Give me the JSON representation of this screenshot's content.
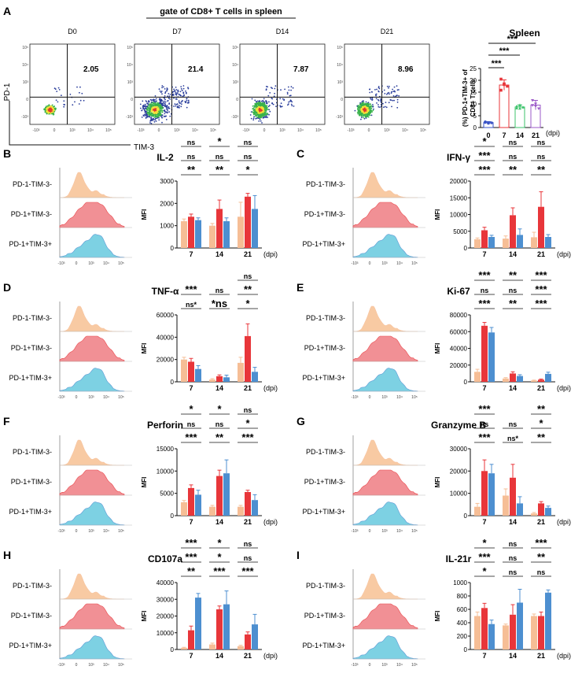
{
  "colors": {
    "neg": "#f6be96",
    "pd1pos": "#e8363a",
    "dbl": "#4d8fd0",
    "hist_neg_fill": "#f8c59a",
    "hist_pd1_fill": "#f0848a",
    "hist_dbl_fill": "#6fcde0",
    "spleen_d0": "#3b55c7",
    "spleen_d7": "#e8363a",
    "spleen_d14": "#3cc36b",
    "spleen_d21": "#9b59c8",
    "flow_low": "#2b3f9c",
    "flow_mid": "#39b24a",
    "flow_high": "#f4e03a",
    "flow_peak": "#e23a2e"
  },
  "panel_a": {
    "letter": "A",
    "header": "gate of CD8+ T cells in spleen",
    "y_axis_label": "PD-1",
    "x_axis_label": "TIM-3",
    "plots": [
      {
        "day": "D0",
        "percent": "2.05"
      },
      {
        "day": "D7",
        "percent": "21.4"
      },
      {
        "day": "D14",
        "percent": "7.87"
      },
      {
        "day": "D21",
        "percent": "8.96"
      }
    ],
    "x_ticks": [
      "-10³",
      "0",
      "10³",
      "10⁴",
      "10⁵"
    ],
    "y_ticks": [
      "10⁵",
      "10⁴",
      "10³",
      "0",
      "-10³"
    ]
  },
  "hist_labels": [
    "PD-1-TIM-3-",
    "PD-1+TIM-3-",
    "PD-1+TIM-3+"
  ],
  "hist_ticks": [
    "-10³",
    "0",
    "10³",
    "10⁴",
    "10⁵"
  ],
  "chart_data": [
    {
      "type": "scatter",
      "title": "Spleen",
      "ylabel": "(%) PD-1+TIM-3+ of CD8+ T cells",
      "xlabel": "(dpi)",
      "categories": [
        "0",
        "7",
        "14",
        "21"
      ],
      "means": [
        2.1,
        18.0,
        8.7,
        9.5
      ],
      "errors": [
        0.4,
        2.2,
        0.9,
        2.0
      ],
      "points": [
        [
          2.2,
          1.8,
          2.0,
          2.4,
          2.1
        ],
        [
          20.5,
          18.5,
          17.5,
          15.8,
          18.2
        ],
        [
          8.2,
          9.5,
          8.6,
          9.0,
          8.1
        ],
        [
          11.5,
          10.0,
          8.0,
          9.4,
          9.0
        ]
      ],
      "ylim": [
        0,
        25
      ],
      "yticks": [
        0,
        5,
        10,
        15,
        20,
        25
      ],
      "significance": [
        "***",
        "***",
        "***"
      ]
    },
    {
      "panel": "B",
      "type": "bar",
      "title": "IL-2",
      "ylabel": "MFI",
      "xlabel": "(dpi)",
      "categories": [
        "7",
        "14",
        "21"
      ],
      "ylim": [
        0,
        3000
      ],
      "yticks": [
        0,
        1000,
        2000,
        3000
      ],
      "series": [
        {
          "name": "PD-1-TIM-3-",
          "values": [
            1200,
            1000,
            1400
          ],
          "errors": [
            100,
            100,
            650
          ]
        },
        {
          "name": "PD-1+TIM-3-",
          "values": [
            1400,
            1750,
            2300
          ],
          "errors": [
            120,
            400,
            150
          ]
        },
        {
          "name": "PD-1+TIM-3+",
          "values": [
            1250,
            1200,
            1750
          ],
          "errors": [
            100,
            150,
            600
          ]
        }
      ],
      "significance": [
        [
          "**",
          "ns",
          "ns"
        ],
        [
          "**",
          "ns",
          "*"
        ],
        [
          "*",
          "ns",
          "ns"
        ]
      ]
    },
    {
      "panel": "C",
      "type": "bar",
      "title": "IFN-γ",
      "ylabel": "MFI",
      "xlabel": "(dpi)",
      "categories": [
        "7",
        "14",
        "21"
      ],
      "ylim": [
        0,
        20000
      ],
      "yticks": [
        0,
        5000,
        10000,
        15000,
        20000
      ],
      "series": [
        {
          "name": "PD-1-TIM-3-",
          "values": [
            2600,
            2800,
            3200
          ],
          "errors": [
            400,
            800,
            1500
          ]
        },
        {
          "name": "PD-1+TIM-3-",
          "values": [
            5300,
            9800,
            12300
          ],
          "errors": [
            900,
            2200,
            4500
          ]
        },
        {
          "name": "PD-1+TIM-3+",
          "values": [
            3300,
            3900,
            3300
          ],
          "errors": [
            500,
            1800,
            700
          ]
        }
      ],
      "significance": [
        [
          "***",
          "***",
          "*"
        ],
        [
          "**",
          "ns",
          "ns"
        ],
        [
          "**",
          "ns",
          "ns"
        ]
      ]
    },
    {
      "panel": "D",
      "type": "bar",
      "title": "TNF-α",
      "ylabel": "MFI",
      "xlabel": "(dpi)",
      "categories": [
        "7",
        "14",
        "21"
      ],
      "ylim": [
        0,
        60000
      ],
      "yticks": [
        0,
        20000,
        40000,
        60000
      ],
      "series": [
        {
          "name": "PD-1-TIM-3-",
          "values": [
            20000,
            2000,
            17000
          ],
          "errors": [
            2000,
            800,
            5000
          ]
        },
        {
          "name": "PD-1+TIM-3-",
          "values": [
            18000,
            5000,
            41000
          ],
          "errors": [
            3000,
            1200,
            11000
          ]
        },
        {
          "name": "PD-1+TIM-3+",
          "values": [
            11500,
            4000,
            9000
          ],
          "errors": [
            3000,
            2000,
            4000
          ]
        }
      ],
      "significance": [
        [
          "ns*",
          "***",
          ""
        ],
        [
          "*ns",
          "ns",
          ""
        ],
        [
          "*",
          "**",
          "ns"
        ]
      ]
    },
    {
      "panel": "E",
      "type": "bar",
      "title": "Ki-67",
      "ylabel": "MFI",
      "xlabel": "(dpi)",
      "categories": [
        "7",
        "14",
        "21"
      ],
      "ylim": [
        0,
        80000
      ],
      "yticks": [
        0,
        20000,
        40000,
        60000,
        80000
      ],
      "series": [
        {
          "name": "PD-1-TIM-3-",
          "values": [
            12000,
            4000,
            1500
          ],
          "errors": [
            3000,
            1000,
            500
          ]
        },
        {
          "name": "PD-1+TIM-3-",
          "values": [
            67000,
            10000,
            2500
          ],
          "errors": [
            4000,
            2000,
            800
          ]
        },
        {
          "name": "PD-1+TIM-3+",
          "values": [
            59000,
            7000,
            9500
          ],
          "errors": [
            6000,
            1500,
            2000
          ]
        }
      ],
      "significance": [
        [
          "***",
          "ns",
          "***"
        ],
        [
          "**",
          "ns",
          "**"
        ],
        [
          "***",
          "***",
          "***"
        ]
      ]
    },
    {
      "panel": "F",
      "type": "bar",
      "title": "Perforin",
      "ylabel": "MFI",
      "xlabel": "(dpi)",
      "categories": [
        "7",
        "14",
        "21"
      ],
      "ylim": [
        0,
        15000
      ],
      "yticks": [
        0,
        5000,
        10000,
        15000
      ],
      "series": [
        {
          "name": "PD-1-TIM-3-",
          "values": [
            3000,
            2000,
            2000
          ],
          "errors": [
            400,
            300,
            300
          ]
        },
        {
          "name": "PD-1+TIM-3-",
          "values": [
            6200,
            8900,
            5300
          ],
          "errors": [
            700,
            1300,
            400
          ]
        },
        {
          "name": "PD-1+TIM-3+",
          "values": [
            4700,
            9500,
            3500
          ],
          "errors": [
            1000,
            3000,
            1200
          ]
        }
      ],
      "significance": [
        [
          "***",
          "ns",
          "*"
        ],
        [
          "**",
          "ns",
          "*"
        ],
        [
          "***",
          "*",
          "ns"
        ]
      ]
    },
    {
      "panel": "G",
      "type": "bar",
      "title": "Granzyme B",
      "ylabel": "MFI",
      "xlabel": "(dpi)",
      "categories": [
        "7",
        "14",
        "21"
      ],
      "ylim": [
        0,
        30000
      ],
      "yticks": [
        0,
        10000,
        20000,
        30000
      ],
      "series": [
        {
          "name": "PD-1-TIM-3-",
          "values": [
            4000,
            9000,
            1000
          ],
          "errors": [
            1500,
            3000,
            400
          ]
        },
        {
          "name": "PD-1+TIM-3-",
          "values": [
            20000,
            17000,
            5500
          ],
          "errors": [
            5000,
            6000,
            800
          ]
        },
        {
          "name": "PD-1+TIM-3+",
          "values": [
            19000,
            5500,
            3500
          ],
          "errors": [
            4000,
            3000,
            800
          ]
        }
      ],
      "significance": [
        [
          "***",
          "ns",
          "***"
        ],
        [
          "ns*",
          "ns",
          ""
        ],
        [
          "**",
          "*",
          "**"
        ]
      ]
    },
    {
      "panel": "H",
      "type": "bar",
      "title": "CD107a",
      "ylabel": "MFI",
      "xlabel": "(dpi)",
      "categories": [
        "7",
        "14",
        "21"
      ],
      "ylim": [
        0,
        40000
      ],
      "yticks": [
        0,
        10000,
        20000,
        30000,
        40000
      ],
      "series": [
        {
          "name": "PD-1-TIM-3-",
          "values": [
            1000,
            3000,
            2000
          ],
          "errors": [
            300,
            800,
            500
          ]
        },
        {
          "name": "PD-1+TIM-3-",
          "values": [
            11500,
            24000,
            9000
          ],
          "errors": [
            2500,
            2000,
            1500
          ]
        },
        {
          "name": "PD-1+TIM-3+",
          "values": [
            31000,
            27000,
            15000
          ],
          "errors": [
            2500,
            8000,
            6000
          ]
        }
      ],
      "significance": [
        [
          "**",
          "***",
          "***"
        ],
        [
          "***",
          "*",
          "*"
        ],
        [
          "***",
          "ns",
          "ns"
        ]
      ]
    },
    {
      "panel": "I",
      "type": "bar",
      "title": "IL-21r",
      "ylabel": "MFI",
      "xlabel": "(dpi)",
      "categories": [
        "7",
        "14",
        "21"
      ],
      "ylim": [
        0,
        1000
      ],
      "yticks": [
        0,
        200,
        400,
        600,
        800,
        1000
      ],
      "series": [
        {
          "name": "PD-1-TIM-3-",
          "values": [
            500,
            360,
            500
          ],
          "errors": [
            60,
            20,
            30
          ]
        },
        {
          "name": "PD-1+TIM-3-",
          "values": [
            620,
            520,
            500
          ],
          "errors": [
            70,
            150,
            60
          ]
        },
        {
          "name": "PD-1+TIM-3+",
          "values": [
            380,
            700,
            850
          ],
          "errors": [
            60,
            200,
            40
          ]
        }
      ],
      "significance": [
        [
          "*",
          "***",
          "*"
        ],
        [
          "ns",
          "ns",
          "ns"
        ],
        [
          "ns",
          "**",
          "***"
        ]
      ]
    }
  ]
}
